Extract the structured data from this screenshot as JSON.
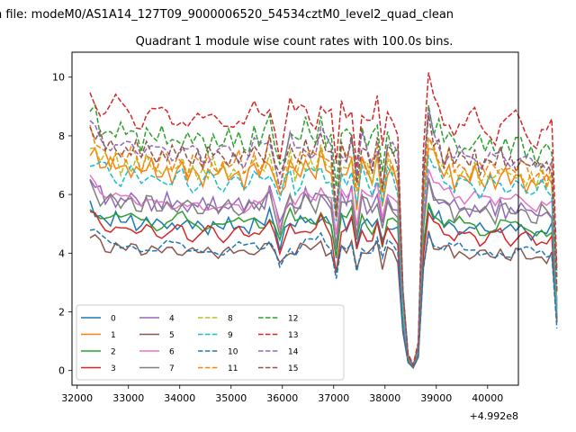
{
  "figure": {
    "suptitle": "n file: modeM0/AS1A14_127T09_9000006520_54534cztM0_level2_quad_clean",
    "offset_label": "+4.992e8"
  },
  "chart_data": {
    "type": "line",
    "title": "Quadrant 1 module wise count rates with 100.0s bins.",
    "xlabel": "",
    "ylabel": "",
    "x_offset": 499200000,
    "xlim": [
      31900,
      40600
    ],
    "ylim": [
      -0.5,
      10.85
    ],
    "xticks": [
      32000,
      33000,
      34000,
      35000,
      36000,
      37000,
      38000,
      39000,
      40000
    ],
    "xtick_labels": [
      "32000",
      "33000",
      "34000",
      "35000",
      "36000",
      "37000",
      "38000",
      "39000",
      "40000"
    ],
    "yticks": [
      0,
      2,
      4,
      6,
      8,
      10
    ],
    "ytick_labels": [
      "0",
      "2",
      "4",
      "6",
      "8",
      "10"
    ],
    "x_start": 32250,
    "x_step": 100,
    "profile": [
      5.0,
      4.9,
      4.7,
      4.6,
      4.55,
      4.6,
      4.5,
      4.55,
      4.6,
      4.5,
      4.45,
      4.55,
      4.5,
      4.4,
      4.45,
      4.5,
      4.4,
      4.45,
      4.5,
      4.35,
      4.4,
      4.45,
      4.35,
      4.4,
      4.45,
      4.4,
      4.35,
      4.4,
      4.4,
      4.45,
      4.3,
      4.4,
      4.55,
      4.4,
      4.5,
      4.75,
      4.45,
      3.85,
      4.25,
      4.6,
      4.3,
      4.5,
      4.65,
      4.55,
      4.5,
      4.8,
      4.5,
      4.4,
      3.4,
      4.6,
      4.45,
      4.7,
      3.75,
      4.6,
      4.4,
      4.3,
      4.7,
      3.85,
      4.5,
      4.4,
      4.2,
      1.5,
      0.3,
      0.1,
      0.5,
      3.8,
      5.1,
      4.7,
      4.6,
      4.4,
      4.5,
      4.3,
      4.4,
      4.2,
      4.3,
      4.4,
      4.25,
      4.3,
      4.35,
      4.2,
      4.4,
      4.3,
      4.25,
      4.35,
      4.3,
      4.25,
      4.2,
      4.1,
      4.3,
      4.15,
      4.25,
      1.6
    ],
    "series": [
      {
        "name": "0",
        "color": "#1f77b4",
        "dash": "solid",
        "scale": 1.12
      },
      {
        "name": "1",
        "color": "#ff7f0e",
        "dash": "solid",
        "scale": 1.52
      },
      {
        "name": "2",
        "color": "#2ca02c",
        "dash": "solid",
        "scale": 1.14
      },
      {
        "name": "3",
        "color": "#d62728",
        "dash": "solid",
        "scale": 1.06
      },
      {
        "name": "4",
        "color": "#9467bd",
        "dash": "solid",
        "scale": 1.28
      },
      {
        "name": "5",
        "color": "#8c564b",
        "dash": "solid",
        "scale": 0.92
      },
      {
        "name": "6",
        "color": "#e377c2",
        "dash": "solid",
        "scale": 1.32
      },
      {
        "name": "7",
        "color": "#7f7f7f",
        "dash": "solid",
        "scale": 1.26
      },
      {
        "name": "8",
        "color": "#bcbd22",
        "dash": "dashed",
        "scale": 1.55
      },
      {
        "name": "9",
        "color": "#17becf",
        "dash": "dashed",
        "scale": 1.46
      },
      {
        "name": "10",
        "color": "#1f77b4",
        "dash": "dashed",
        "scale": 0.94
      },
      {
        "name": "11",
        "color": "#ff7f0e",
        "dash": "dashed",
        "scale": 1.6
      },
      {
        "name": "12",
        "color": "#2ca02c",
        "dash": "dashed",
        "scale": 1.78
      },
      {
        "name": "13",
        "color": "#d62728",
        "dash": "dashed",
        "scale": 1.94
      },
      {
        "name": "14",
        "color": "#9467bd",
        "dash": "dashed",
        "scale": 1.68
      },
      {
        "name": "15",
        "color": "#8c564b",
        "dash": "dashed",
        "scale": 1.66
      }
    ],
    "legend_position": "lower-left",
    "legend_columns": 4,
    "grid": false
  }
}
